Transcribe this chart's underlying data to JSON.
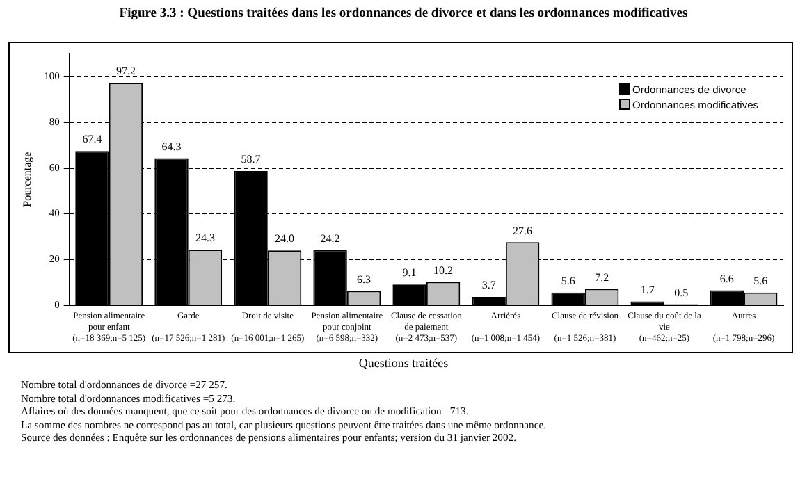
{
  "chart_data": {
    "type": "bar",
    "title": "Figure 3.3 : Questions traitées dans les ordonnances de divorce et dans les ordonnances modificatives",
    "xlabel": "Questions traitées",
    "ylabel": "Pourcentage",
    "categories": [
      "Pension alimentaire\npour enfant\n(n=18 369;n=5 125)",
      "Garde\n\n(n=17 526;n=1 281)",
      "Droit de visite\n\n(n=16 001;n=1 265)",
      "Pension alimentaire\npour conjoint\n(n=6 598;n=332)",
      "Clause de cessation\nde paiement\n(n=2 473;n=537)",
      "Arriérés\n\n(n=1 008;n=1 454)",
      "Clause de révision\n\n(n=1 526;n=381)",
      "Clause du coût de la\nvie\n(n=462;n=25)",
      "Autres\n\n(n=1 798;n=296)"
    ],
    "series": [
      {
        "name": "Ordonnances de divorce",
        "color": "#000000",
        "values": [
          67.4,
          64.3,
          58.7,
          24.2,
          9.1,
          3.7,
          5.6,
          1.7,
          6.6
        ],
        "value_labels": [
          "67.4",
          "64.3",
          "58.7",
          "24.2",
          "9.1",
          "3.7",
          "5.6",
          "1.7",
          "6.6"
        ]
      },
      {
        "name": "Ordonnances modificatives",
        "color": "#c0c0c0",
        "values": [
          97.2,
          24.3,
          24.0,
          6.3,
          10.2,
          27.6,
          7.2,
          0.5,
          5.6
        ],
        "value_labels": [
          "97.2",
          "24.3",
          "24.0",
          "6.3",
          "10.2",
          "27.6",
          "7.2",
          "0.5",
          "5.6"
        ]
      }
    ],
    "ylim": [
      0,
      110
    ],
    "yticks": [
      0,
      20,
      40,
      60,
      80,
      100
    ],
    "grid": "y",
    "legend": "top right",
    "annotations": [
      "Nombre total d'ordonnances de divorce =27 257.",
      "Nombre total d'ordonnances modificatives =5 273.",
      "Affaires où des données manquent, que ce soit pour des ordonnances de divorce ou de modification =713.",
      "La somme des nombres ne correspond pas au total, car plusieurs questions peuvent être traitées dans une même ordonnance.",
      "Source des données : Enquête sur les ordonnances de pensions alimentaires pour enfants; version du 31 janvier 2002."
    ]
  }
}
